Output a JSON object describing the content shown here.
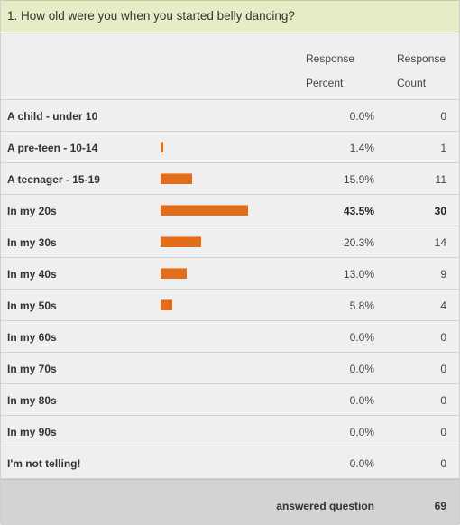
{
  "question": {
    "title": "1. How old were you when you started belly dancing?"
  },
  "columns": {
    "percent_line1": "Response",
    "percent_line2": "Percent",
    "count_line1": "Response",
    "count_line2": "Count"
  },
  "bar_color": "#e26d1b",
  "rows": [
    {
      "label": "A child - under 10",
      "percent": "0.0%",
      "percent_value": 0.0,
      "count": "0"
    },
    {
      "label": "A pre-teen - 10-14",
      "percent": "1.4%",
      "percent_value": 1.4,
      "count": "1"
    },
    {
      "label": "A teenager - 15-19",
      "percent": "15.9%",
      "percent_value": 15.9,
      "count": "11"
    },
    {
      "label": "In my 20s",
      "percent": "43.5%",
      "percent_value": 43.5,
      "count": "30",
      "highlight": true
    },
    {
      "label": "In my 30s",
      "percent": "20.3%",
      "percent_value": 20.3,
      "count": "14"
    },
    {
      "label": "In my 40s",
      "percent": "13.0%",
      "percent_value": 13.0,
      "count": "9"
    },
    {
      "label": "In my 50s",
      "percent": "5.8%",
      "percent_value": 5.8,
      "count": "4"
    },
    {
      "label": "In my 60s",
      "percent": "0.0%",
      "percent_value": 0.0,
      "count": "0"
    },
    {
      "label": "In my 70s",
      "percent": "0.0%",
      "percent_value": 0.0,
      "count": "0"
    },
    {
      "label": "In my 80s",
      "percent": "0.0%",
      "percent_value": 0.0,
      "count": "0"
    },
    {
      "label": "In my 90s",
      "percent": "0.0%",
      "percent_value": 0.0,
      "count": "0"
    },
    {
      "label": "I'm not telling!",
      "percent": "0.0%",
      "percent_value": 0.0,
      "count": "0"
    }
  ],
  "footer": {
    "label": "answered question",
    "value": "69"
  }
}
